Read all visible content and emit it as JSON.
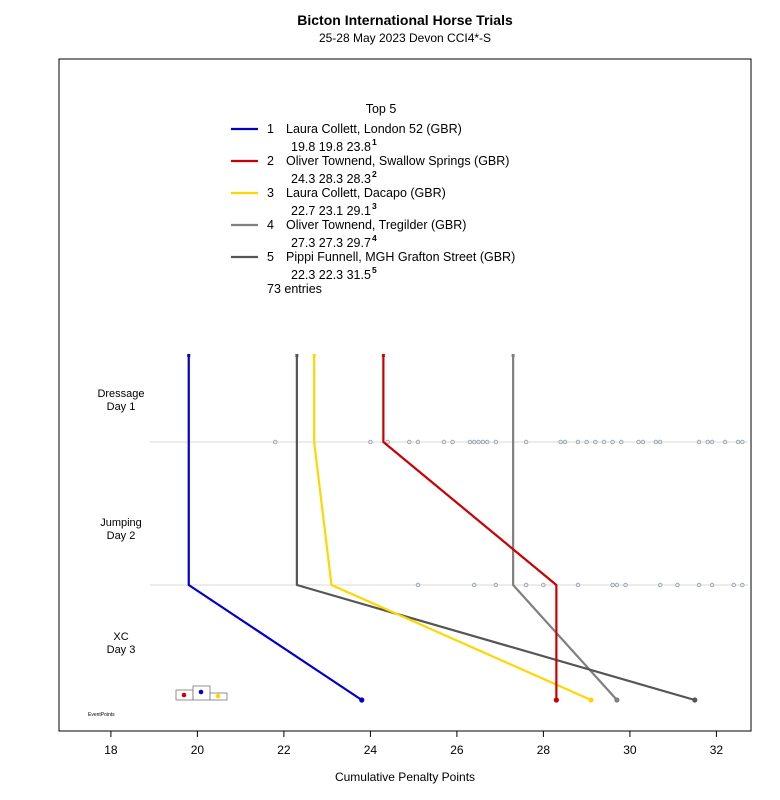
{
  "chart_data": {
    "type": "line",
    "title": "Bicton International Horse Trials",
    "subtitle": "25-28 May 2023  Devon  CCI4*-S",
    "xlabel": "Cumulative Penalty Points",
    "ylabel": "",
    "xlim": [
      16.8,
      32.8
    ],
    "x_ticks": [
      18,
      20,
      22,
      24,
      26,
      28,
      30,
      32
    ],
    "phases": [
      {
        "label1": "Dressage",
        "label2": "Day 1"
      },
      {
        "label1": "Jumping",
        "label2": "Day 2"
      },
      {
        "label1": "XC",
        "label2": "Day 3"
      }
    ],
    "legend_title": "Top 5",
    "entries_text": "73 entries",
    "watermark": "EventPoints",
    "series": [
      {
        "rank": "1",
        "rider": "Laura Collett,",
        "horse": "London 52",
        "nation": "(GBR)",
        "color": "#0000cc",
        "scores": [
          19.8,
          19.8,
          23.8
        ],
        "score_labels": [
          "19.8",
          "19.8",
          "23.8"
        ],
        "final_rank": "1"
      },
      {
        "rank": "2",
        "rider": "Oliver Townend,",
        "horse": "Swallow Springs",
        "nation": "(GBR)",
        "color": "#cc0000",
        "scores": [
          24.3,
          28.3,
          28.3
        ],
        "score_labels": [
          "24.3",
          "28.3",
          "28.3"
        ],
        "final_rank": "2"
      },
      {
        "rank": "3",
        "rider": "Laura Collett,",
        "horse": "Dacapo",
        "nation": "(GBR)",
        "color": "#ffd700",
        "scores": [
          22.7,
          23.1,
          29.1
        ],
        "score_labels": [
          "22.7",
          "23.1",
          "29.1"
        ],
        "final_rank": "3"
      },
      {
        "rank": "4",
        "rider": "Oliver Townend,",
        "horse": "Tregilder",
        "nation": "(GBR)",
        "color": "#808080",
        "scores": [
          27.3,
          27.3,
          29.7
        ],
        "score_labels": [
          "27.3",
          "27.3",
          "29.7"
        ],
        "final_rank": "4"
      },
      {
        "rank": "5",
        "rider": "Pippi Funnell,",
        "horse": "MGH Grafton Street",
        "nation": "(GBR)",
        "color": "#555555",
        "scores": [
          22.3,
          22.3,
          31.5
        ],
        "score_labels": [
          "22.3",
          "22.3",
          "31.5"
        ],
        "final_rank": "5"
      }
    ],
    "field_dressage": [
      21.8,
      24.0,
      24.4,
      24.9,
      25.1,
      25.7,
      25.9,
      26.3,
      26.4,
      26.5,
      26.6,
      26.7,
      26.9,
      27.6,
      28.4,
      28.5,
      28.8,
      29.0,
      29.2,
      29.4,
      29.6,
      29.8,
      30.2,
      30.3,
      30.6,
      30.7,
      31.6,
      31.8,
      31.9,
      32.2,
      32.5,
      32.6
    ],
    "field_jumping": [
      25.1,
      26.4,
      26.9,
      27.6,
      28.0,
      28.8,
      29.6,
      29.7,
      29.9,
      30.7,
      31.1,
      31.6,
      31.9,
      32.4,
      32.6
    ],
    "podium_colors": [
      "#cc0000",
      "#0000cc",
      "#ffd700"
    ]
  }
}
